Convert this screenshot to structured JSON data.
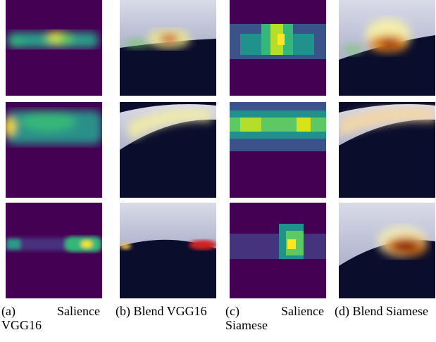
{
  "figure": {
    "captions": [
      "(a) Salience VGG16",
      "(b) Blend VGG16",
      "(c) Salience Siamese",
      "(d) Blend Siamese"
    ]
  }
}
